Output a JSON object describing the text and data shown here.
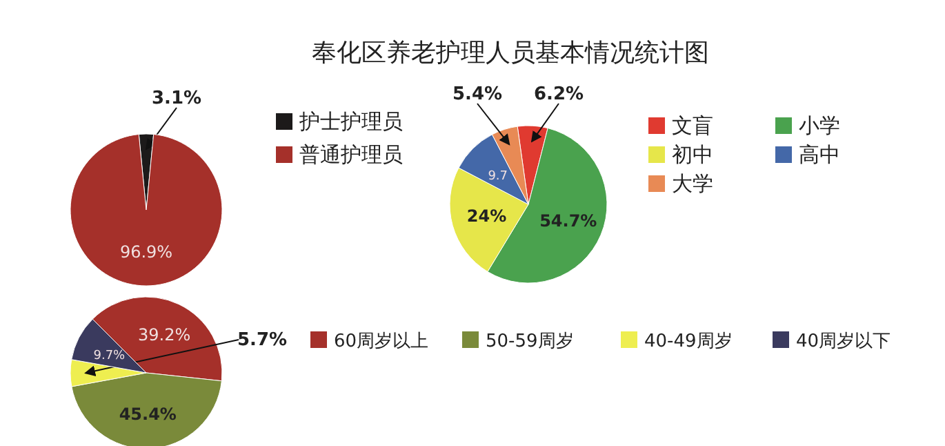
{
  "chart_data": [
    {
      "type": "pie",
      "categories": [
        "护士护理员",
        "普通护理员"
      ],
      "values": [
        3.1,
        96.9
      ],
      "colors": [
        "#1c1a1a",
        "#a5302a"
      ],
      "value_labels": [
        "3.1%",
        "96.9%"
      ],
      "legend": "right"
    },
    {
      "type": "pie",
      "title": "奉化区养老护理人员基本情况统计图",
      "categories": [
        "文盲",
        "小学",
        "初中",
        "高中",
        "大学"
      ],
      "values": [
        6.2,
        54.7,
        24,
        9.7,
        5.4
      ],
      "colors": [
        "#e03a30",
        "#4aa24e",
        "#e6e64a",
        "#4468a8",
        "#e88a55"
      ],
      "value_labels": [
        "6.2%",
        "54.7%",
        "24%",
        "9.7",
        "5.4%"
      ],
      "legend": "right"
    },
    {
      "type": "pie",
      "categories": [
        "60周岁以上",
        "50-59周岁",
        "40-49周岁",
        "40周岁以下"
      ],
      "values": [
        39.2,
        45.4,
        5.7,
        9.7
      ],
      "colors": [
        "#a5302a",
        "#7a8a3a",
        "#eeee50",
        "#3a3a5e"
      ],
      "value_labels": [
        "39.2%",
        "45.4%",
        "5.7%",
        "9.7%"
      ],
      "legend": "right"
    }
  ]
}
